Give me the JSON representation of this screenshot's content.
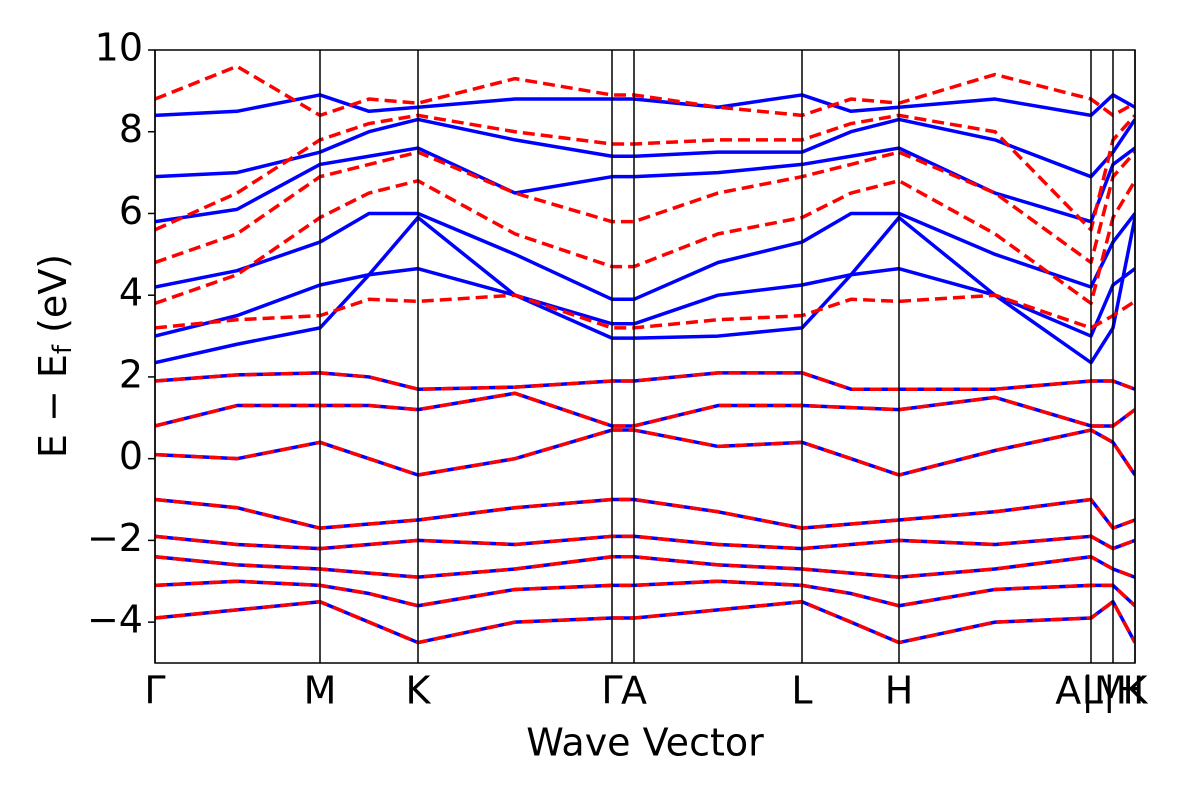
{
  "chart_data": {
    "type": "line",
    "xlabel": "Wave Vector",
    "ylabel_parts": [
      "E − E",
      "f",
      " (eV)"
    ],
    "xlim": [
      0,
      4.9
    ],
    "ylim": [
      -5,
      10
    ],
    "yticks": [
      {
        "value": -4,
        "label": "−4"
      },
      {
        "value": -2,
        "label": "−2"
      },
      0,
      2,
      4,
      6,
      8,
      10
    ],
    "xticks": [
      {
        "value": 0,
        "label": "Γ"
      },
      {
        "value": 0.825,
        "label": "M"
      },
      {
        "value": 1.315,
        "label": "K"
      },
      {
        "value": 2.285,
        "label": "Γ"
      },
      {
        "value": 2.395,
        "label": "A"
      },
      {
        "value": 3.235,
        "label": "L"
      },
      {
        "value": 3.72,
        "label": "H"
      },
      {
        "value": 4.68,
        "label": "A|M"
      },
      {
        "value": 4.79,
        "label": "L|H"
      },
      {
        "value": 4.9,
        "label": "K"
      }
    ],
    "x": [
      0,
      0.41,
      0.825,
      1.07,
      1.315,
      1.8,
      2.285,
      2.395,
      2.815,
      3.235,
      3.48,
      3.72,
      4.2,
      4.68,
      4.79,
      4.9
    ],
    "series": [
      {
        "color": "#0000ff",
        "dashed": false,
        "values": [
          2.35,
          2.8,
          3.2,
          4.5,
          5.9,
          4.0,
          2.95,
          2.95,
          3.0,
          3.2,
          4.5,
          5.9,
          4.0,
          2.35,
          3.2,
          5.9
        ]
      },
      {
        "color": "#0000ff",
        "dashed": false,
        "values": [
          3.0,
          3.5,
          4.25,
          4.5,
          4.65,
          4.0,
          3.3,
          3.3,
          4.0,
          4.25,
          4.5,
          4.65,
          4.0,
          3.0,
          4.25,
          4.65
        ]
      },
      {
        "color": "#0000ff",
        "dashed": false,
        "values": [
          4.2,
          4.6,
          5.3,
          6.0,
          6.0,
          5.0,
          3.9,
          3.9,
          4.8,
          5.3,
          6.0,
          6.0,
          5.0,
          4.2,
          5.3,
          6.0
        ]
      },
      {
        "color": "#0000ff",
        "dashed": false,
        "values": [
          5.8,
          6.1,
          7.2,
          7.4,
          7.6,
          6.5,
          6.9,
          6.9,
          7.0,
          7.2,
          7.4,
          7.6,
          6.5,
          5.8,
          7.2,
          7.6
        ]
      },
      {
        "color": "#0000ff",
        "dashed": false,
        "values": [
          6.9,
          7.0,
          7.5,
          8.0,
          8.3,
          7.8,
          7.4,
          7.4,
          7.5,
          7.5,
          8.0,
          8.3,
          7.8,
          6.9,
          7.5,
          8.3
        ]
      },
      {
        "color": "#0000ff",
        "dashed": false,
        "values": [
          8.4,
          8.5,
          8.9,
          8.5,
          8.6,
          8.8,
          8.8,
          8.8,
          8.6,
          8.9,
          8.5,
          8.6,
          8.8,
          8.4,
          8.9,
          8.6
        ]
      },
      {
        "color": "#ff0000",
        "dashed": true,
        "values": [
          3.2,
          3.4,
          3.5,
          3.9,
          3.85,
          4.0,
          3.2,
          3.2,
          3.4,
          3.5,
          3.9,
          3.85,
          4.0,
          3.2,
          3.5,
          3.85
        ]
      },
      {
        "color": "#ff0000",
        "dashed": true,
        "values": [
          3.8,
          4.5,
          5.9,
          6.5,
          6.8,
          5.5,
          4.7,
          4.7,
          5.5,
          5.9,
          6.5,
          6.8,
          5.5,
          3.8,
          5.9,
          6.8
        ]
      },
      {
        "color": "#ff0000",
        "dashed": true,
        "values": [
          4.8,
          5.5,
          6.9,
          7.2,
          7.5,
          6.5,
          5.8,
          5.8,
          6.5,
          6.9,
          7.2,
          7.5,
          6.5,
          4.8,
          6.9,
          7.5
        ]
      },
      {
        "color": "#ff0000",
        "dashed": true,
        "values": [
          5.6,
          6.5,
          7.8,
          8.2,
          8.4,
          8.0,
          7.7,
          7.7,
          7.8,
          7.8,
          8.2,
          8.4,
          8.0,
          5.6,
          7.8,
          8.4
        ]
      },
      {
        "color": "#ff0000",
        "dashed": true,
        "values": [
          8.8,
          9.6,
          8.4,
          8.8,
          8.7,
          9.3,
          8.9,
          8.9,
          8.6,
          8.4,
          8.8,
          8.7,
          9.4,
          8.8,
          8.4,
          8.7
        ]
      },
      {
        "color": "#0000ff",
        "dashed": false,
        "values": [
          1.9,
          2.05,
          2.1,
          2.0,
          1.7,
          1.75,
          1.9,
          1.9,
          2.1,
          2.1,
          1.7,
          1.7,
          1.7,
          1.9,
          1.9,
          1.7
        ]
      },
      {
        "color": "#0000ff",
        "dashed": false,
        "values": [
          0.8,
          1.3,
          1.3,
          1.3,
          1.2,
          1.6,
          0.8,
          0.8,
          1.3,
          1.3,
          1.25,
          1.2,
          1.5,
          0.8,
          0.8,
          1.2
        ]
      },
      {
        "color": "#0000ff",
        "dashed": false,
        "values": [
          0.1,
          0.0,
          0.4,
          0.0,
          -0.4,
          0.0,
          0.7,
          0.7,
          0.3,
          0.4,
          0.0,
          -0.4,
          0.2,
          0.7,
          0.4,
          -0.4
        ]
      },
      {
        "color": "#0000ff",
        "dashed": false,
        "values": [
          -1.0,
          -1.2,
          -1.7,
          -1.6,
          -1.5,
          -1.2,
          -1.0,
          -1.0,
          -1.3,
          -1.7,
          -1.6,
          -1.5,
          -1.3,
          -1.0,
          -1.7,
          -1.5
        ]
      },
      {
        "color": "#0000ff",
        "dashed": false,
        "values": [
          -1.9,
          -2.1,
          -2.2,
          -2.1,
          -2.0,
          -2.1,
          -1.9,
          -1.9,
          -2.1,
          -2.2,
          -2.1,
          -2.0,
          -2.1,
          -1.9,
          -2.2,
          -2.0
        ]
      },
      {
        "color": "#0000ff",
        "dashed": false,
        "values": [
          -2.4,
          -2.6,
          -2.7,
          -2.8,
          -2.9,
          -2.7,
          -2.4,
          -2.4,
          -2.6,
          -2.7,
          -2.8,
          -2.9,
          -2.7,
          -2.4,
          -2.7,
          -2.9
        ]
      },
      {
        "color": "#0000ff",
        "dashed": false,
        "values": [
          -3.1,
          -3.0,
          -3.1,
          -3.3,
          -3.6,
          -3.2,
          -3.1,
          -3.1,
          -3.0,
          -3.1,
          -3.3,
          -3.6,
          -3.2,
          -3.1,
          -3.1,
          -3.6
        ]
      },
      {
        "color": "#0000ff",
        "dashed": false,
        "values": [
          -3.9,
          -3.7,
          -3.5,
          -4.0,
          -4.5,
          -4.0,
          -3.9,
          -3.9,
          -3.7,
          -3.5,
          -4.0,
          -4.5,
          -4.0,
          -3.9,
          -3.5,
          -4.5
        ]
      },
      {
        "color": "#ff0000",
        "dashed": true,
        "values": [
          1.9,
          2.05,
          2.1,
          2.0,
          1.7,
          1.75,
          1.9,
          1.9,
          2.1,
          2.1,
          1.7,
          1.7,
          1.7,
          1.9,
          1.9,
          1.7
        ]
      },
      {
        "color": "#ff0000",
        "dashed": true,
        "values": [
          0.8,
          1.3,
          1.3,
          1.3,
          1.2,
          1.6,
          0.8,
          0.8,
          1.3,
          1.3,
          1.25,
          1.2,
          1.5,
          0.8,
          0.8,
          1.2
        ]
      },
      {
        "color": "#ff0000",
        "dashed": true,
        "values": [
          0.1,
          0.0,
          0.4,
          0.0,
          -0.4,
          0.0,
          0.7,
          0.7,
          0.3,
          0.4,
          0.0,
          -0.4,
          0.2,
          0.7,
          0.4,
          -0.4
        ]
      },
      {
        "color": "#ff0000",
        "dashed": true,
        "values": [
          -1.0,
          -1.2,
          -1.7,
          -1.6,
          -1.5,
          -1.2,
          -1.0,
          -1.0,
          -1.3,
          -1.7,
          -1.6,
          -1.5,
          -1.3,
          -1.0,
          -1.7,
          -1.5
        ]
      },
      {
        "color": "#ff0000",
        "dashed": true,
        "values": [
          -1.9,
          -2.1,
          -2.2,
          -2.1,
          -2.0,
          -2.1,
          -1.9,
          -1.9,
          -2.1,
          -2.2,
          -2.1,
          -2.0,
          -2.1,
          -1.9,
          -2.2,
          -2.0
        ]
      },
      {
        "color": "#ff0000",
        "dashed": true,
        "values": [
          -2.4,
          -2.6,
          -2.7,
          -2.8,
          -2.9,
          -2.7,
          -2.4,
          -2.4,
          -2.6,
          -2.7,
          -2.8,
          -2.9,
          -2.7,
          -2.4,
          -2.7,
          -2.9
        ]
      },
      {
        "color": "#ff0000",
        "dashed": true,
        "values": [
          -3.1,
          -3.0,
          -3.1,
          -3.3,
          -3.6,
          -3.2,
          -3.1,
          -3.1,
          -3.0,
          -3.1,
          -3.3,
          -3.6,
          -3.2,
          -3.1,
          -3.1,
          -3.6
        ]
      },
      {
        "color": "#ff0000",
        "dashed": true,
        "values": [
          -3.9,
          -3.7,
          -3.5,
          -4.0,
          -4.5,
          -4.0,
          -3.9,
          -3.9,
          -3.7,
          -3.5,
          -4.0,
          -4.5,
          -4.0,
          -3.9,
          -3.5,
          -4.5
        ]
      }
    ]
  }
}
